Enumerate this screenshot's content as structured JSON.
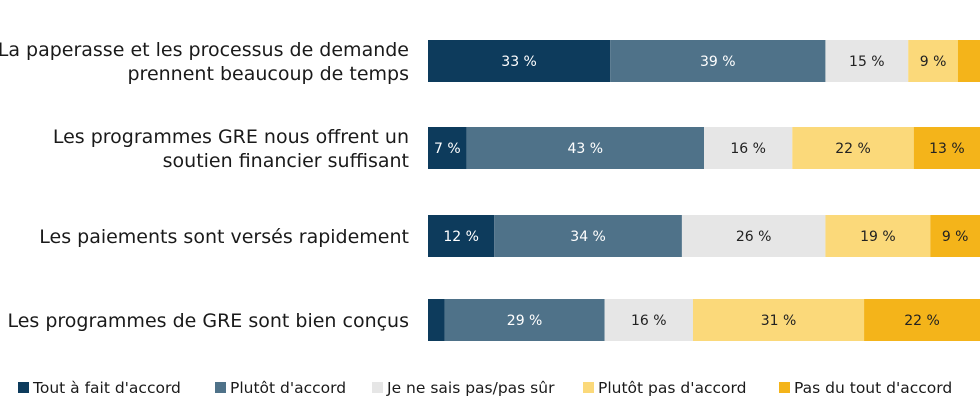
{
  "colors": {
    "tout_a_fait": "#0d3b5c",
    "plutot": "#4f7289",
    "ne_sais_pas": "#e6e6e6",
    "plutot_pas": "#fbd97a",
    "pas_du_tout": "#f4b41a",
    "label_dark": "#222222",
    "label_light": "#ffffff"
  },
  "chart_data": {
    "type": "bar",
    "orientation": "horizontal",
    "stacked": true,
    "grid": false,
    "legend_position": "bottom",
    "categories": [
      [
        "La paperasse et les processus de demande",
        "prennent beaucoup de temps"
      ],
      [
        "Les programmes GRE nous offrent un",
        "soutien financier suffisant"
      ],
      [
        "Les paiements sont versés rapidement"
      ],
      [
        "Les programmes de GRE sont bien conçus"
      ]
    ],
    "series": [
      {
        "name": "Tout à fait d'accord",
        "values": [
          33,
          7,
          12,
          3
        ],
        "labels": [
          "33 %",
          "7 %",
          "12 %",
          ""
        ]
      },
      {
        "name": "Plutôt d'accord",
        "values": [
          39,
          43,
          34,
          29
        ],
        "labels": [
          "39 %",
          "43 %",
          "34 %",
          "29 %"
        ]
      },
      {
        "name": "Je ne sais pas/pas sûr",
        "values": [
          15,
          16,
          26,
          16
        ],
        "labels": [
          "15 %",
          "16 %",
          "26 %",
          "16 %"
        ]
      },
      {
        "name": "Plutôt pas d'accord",
        "values": [
          9,
          22,
          19,
          31
        ],
        "labels": [
          "9 %",
          "22 %",
          "19 %",
          "31 %"
        ]
      },
      {
        "name": "Pas du tout d'accord",
        "values": [
          4,
          13,
          9,
          22
        ],
        "labels": [
          "",
          "13 %",
          "9 %",
          "22 %"
        ]
      }
    ],
    "xlim": [
      0,
      100
    ]
  }
}
